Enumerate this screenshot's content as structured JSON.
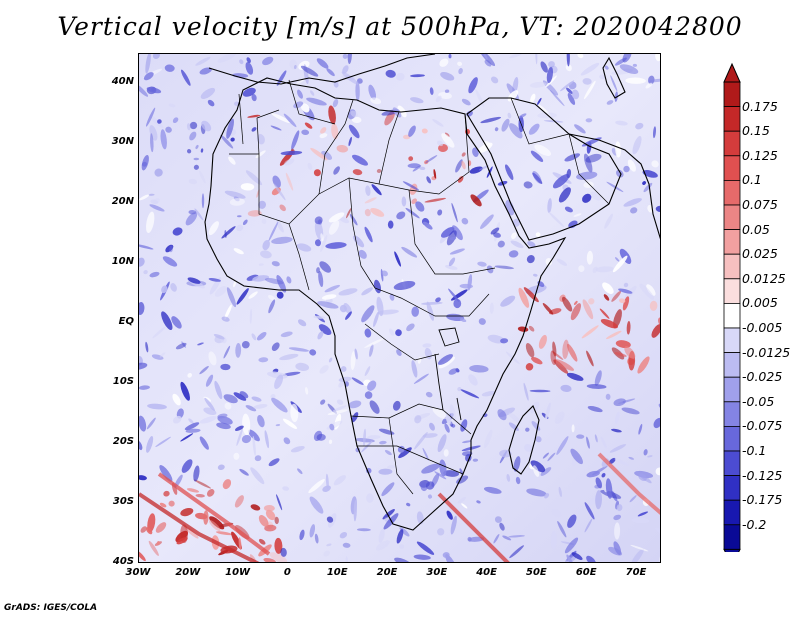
{
  "title": "Vertical velocity [m/s] at 500hPa, VT: 2020042800",
  "variable": "Vertical velocity",
  "units": "m/s",
  "pressure_level": "500hPa",
  "valid_time": "2020042800",
  "map": {
    "lon_range": [
      -30,
      75
    ],
    "lat_range": [
      -40,
      45
    ],
    "lat_ticks": [
      "40N",
      "30N",
      "20N",
      "10N",
      "EQ",
      "10S",
      "20S",
      "30S",
      "40S"
    ],
    "lon_ticks": [
      "30W",
      "20W",
      "10W",
      "0",
      "10E",
      "20E",
      "30E",
      "40E",
      "50E",
      "60E",
      "70E"
    ]
  },
  "colorbar": {
    "labels": [
      "0.175",
      "0.15",
      "0.125",
      "0.1",
      "0.075",
      "0.05",
      "0.025",
      "0.0125",
      "0.005",
      "-0.005",
      "-0.0125",
      "-0.025",
      "-0.05",
      "-0.075",
      "-0.1",
      "-0.125",
      "-0.175",
      "-0.2"
    ],
    "colors": [
      "#b01a1a",
      "#c42828",
      "#d43c3c",
      "#e05050",
      "#e66a6a",
      "#ec8585",
      "#f2a0a0",
      "#f7c0c0",
      "#fbdede",
      "#ffffff",
      "#d8d8f8",
      "#bcbcf2",
      "#a0a0ec",
      "#8484e4",
      "#6868dc",
      "#4c4cd2",
      "#3030c4",
      "#1818b0",
      "#0a0a96"
    ]
  },
  "credit": "GrADS: IGES/COLA"
}
